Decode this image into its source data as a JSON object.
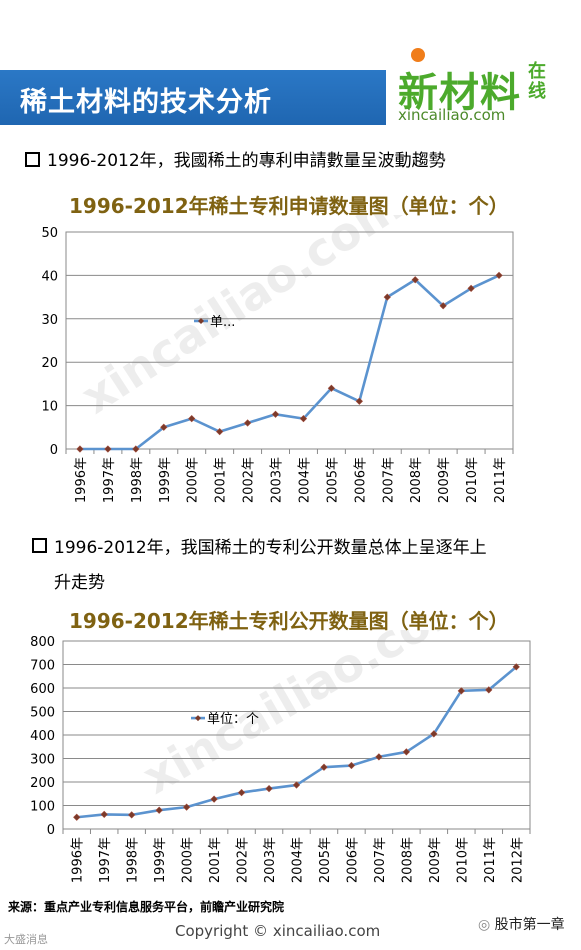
{
  "header": {
    "title": "稀土材料的技术分析"
  },
  "logo": {
    "main": "新材料",
    "side": "在线",
    "url": "xincailiao.com"
  },
  "watermark": "xincailiao.com",
  "section1": {
    "heading": "1996-2012年，我國稀土的專利申請數量呈波動趨勢"
  },
  "section2": {
    "heading_line1": "1996-2012年，我国稀土的专利公开数量总体上呈逐年上",
    "heading_line2": "升走势"
  },
  "chart_data": [
    {
      "type": "line",
      "title": "1996-2012年稀土专利申请数量图（单位：个）",
      "categories": [
        "1996年",
        "1997年",
        "1998年",
        "1999年",
        "2000年",
        "2001年",
        "2002年",
        "2003年",
        "2004年",
        "2005年",
        "2006年",
        "2007年",
        "2008年",
        "2009年",
        "2010年",
        "2011年"
      ],
      "series": [
        {
          "name": "单...",
          "values": [
            0,
            0,
            0,
            5,
            7,
            4,
            6,
            8,
            7,
            14,
            11,
            35,
            39,
            33,
            37,
            40
          ]
        }
      ],
      "ylim": [
        0,
        50
      ],
      "yticks": [
        0,
        10,
        20,
        30,
        40,
        50
      ],
      "grid": true,
      "legend": "center-left",
      "color": "#5b93cf"
    },
    {
      "type": "line",
      "title": "1996-2012年稀土专利公开数量图（单位：个）",
      "categories": [
        "1996年",
        "1997年",
        "1998年",
        "1999年",
        "2000年",
        "2001年",
        "2002年",
        "2003年",
        "2004年",
        "2005年",
        "2006年",
        "2007年",
        "2008年",
        "2009年",
        "2010年",
        "2011年",
        "2012年"
      ],
      "series": [
        {
          "name": "单位：个",
          "values": [
            50,
            62,
            60,
            80,
            93,
            127,
            155,
            172,
            187,
            263,
            270,
            307,
            328,
            405,
            588,
            592,
            690
          ]
        }
      ],
      "ylim": [
        0,
        800
      ],
      "yticks": [
        0,
        100,
        200,
        300,
        400,
        500,
        600,
        700,
        800
      ],
      "grid": true,
      "legend": "center-left",
      "color": "#5b93cf"
    }
  ],
  "footer": {
    "source": "来源：重点产业专利信息服务平台，前瞻产业研究院",
    "copyright": "Copyright © xincailiao.com",
    "wechat": "股市第一章",
    "bottom_left_mark": "大盛消息"
  }
}
